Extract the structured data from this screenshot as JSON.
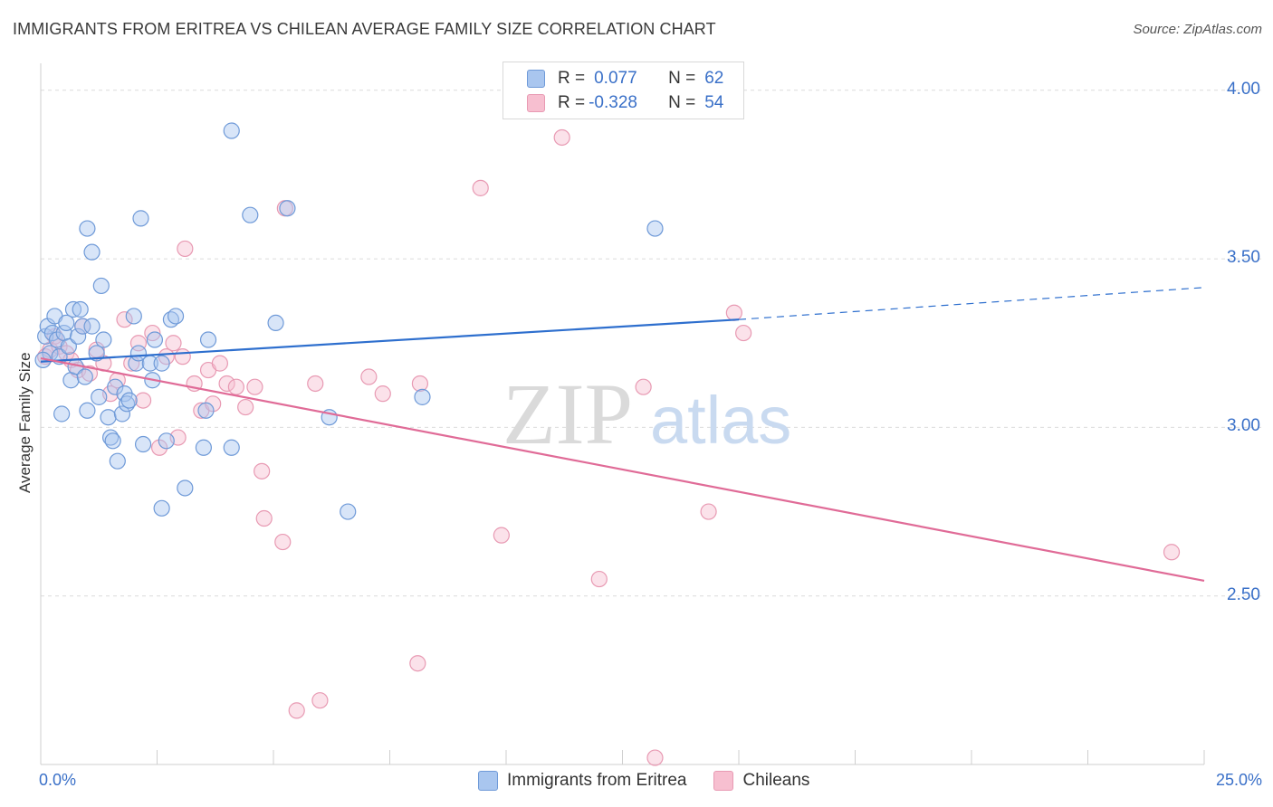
{
  "header": {
    "title": "IMMIGRANTS FROM ERITREA VS CHILEAN AVERAGE FAMILY SIZE CORRELATION CHART",
    "source": "Source: ZipAtlas.com"
  },
  "watermark": {
    "zip": "ZIP",
    "atlas": "atlas"
  },
  "legend": {
    "rows": [
      {
        "r_label": "R =",
        "r_value": "0.077",
        "n_label": "N =",
        "n_value": "62"
      },
      {
        "r_label": "R =",
        "r_value": "-0.328",
        "n_label": "N =",
        "n_value": "54"
      }
    ]
  },
  "axes": {
    "ylabel": "Average Family Size",
    "x_min_label": "0.0%",
    "x_max_label": "25.0%",
    "y_ticks": [
      "4.00",
      "3.50",
      "3.00",
      "2.50"
    ]
  },
  "chart_data": {
    "type": "scatter",
    "title": "IMMIGRANTS FROM ERITREA VS CHILEAN AVERAGE FAMILY SIZE CORRELATION CHART",
    "xlabel": "",
    "ylabel": "Average Family Size",
    "xlim": [
      0,
      25
    ],
    "ylim": [
      2.0,
      4.08
    ],
    "y_tick_values": [
      2.5,
      3.0,
      3.5,
      4.0
    ],
    "grid": "horizontal dashed",
    "legend_placement": "top-center",
    "colors": {
      "eritrea_fill": "#a9c6ef",
      "eritrea_stroke": "#6f9ad8",
      "eritrea_line": "#2e6fce",
      "chilean_fill": "#f7bfd0",
      "chilean_stroke": "#e89ab3",
      "chilean_line": "#e06b97",
      "tick_text": "#3a70c8"
    },
    "series": [
      {
        "name": "Immigrants from Eritrea",
        "trend": {
          "x0": 0,
          "y0": 3.195,
          "x1": 15,
          "y1": 3.32,
          "dashed_to": 25,
          "dashed_y": 3.415
        },
        "points": [
          [
            0.1,
            3.27
          ],
          [
            0.15,
            3.3
          ],
          [
            0.2,
            3.22
          ],
          [
            0.25,
            3.28
          ],
          [
            0.3,
            3.33
          ],
          [
            0.35,
            3.26
          ],
          [
            0.4,
            3.21
          ],
          [
            0.45,
            3.04
          ],
          [
            0.5,
            3.28
          ],
          [
            0.55,
            3.31
          ],
          [
            0.6,
            3.24
          ],
          [
            0.65,
            3.14
          ],
          [
            0.7,
            3.35
          ],
          [
            0.75,
            3.18
          ],
          [
            0.8,
            3.27
          ],
          [
            0.85,
            3.35
          ],
          [
            0.9,
            3.3
          ],
          [
            0.95,
            3.15
          ],
          [
            1.0,
            3.05
          ],
          [
            1.1,
            3.3
          ],
          [
            1.2,
            3.22
          ],
          [
            1.25,
            3.09
          ],
          [
            1.3,
            3.42
          ],
          [
            1.35,
            3.26
          ],
          [
            1.45,
            3.03
          ],
          [
            1.5,
            2.97
          ],
          [
            1.55,
            2.96
          ],
          [
            1.6,
            3.12
          ],
          [
            1.65,
            2.9
          ],
          [
            1.75,
            3.04
          ],
          [
            1.8,
            3.1
          ],
          [
            1.85,
            3.07
          ],
          [
            1.9,
            3.08
          ],
          [
            2.0,
            3.33
          ],
          [
            2.05,
            3.19
          ],
          [
            2.1,
            3.22
          ],
          [
            2.2,
            2.95
          ],
          [
            2.35,
            3.19
          ],
          [
            2.4,
            3.14
          ],
          [
            2.45,
            3.26
          ],
          [
            2.6,
            3.19
          ],
          [
            2.7,
            2.96
          ],
          [
            2.8,
            3.32
          ],
          [
            2.9,
            3.33
          ],
          [
            3.1,
            2.82
          ],
          [
            2.6,
            2.76
          ],
          [
            3.5,
            2.94
          ],
          [
            3.55,
            3.05
          ],
          [
            3.6,
            3.26
          ],
          [
            4.1,
            2.94
          ],
          [
            4.1,
            3.88
          ],
          [
            4.5,
            3.63
          ],
          [
            5.05,
            3.31
          ],
          [
            5.3,
            3.65
          ],
          [
            2.15,
            3.62
          ],
          [
            1.0,
            3.59
          ],
          [
            1.1,
            3.52
          ],
          [
            6.2,
            3.03
          ],
          [
            6.6,
            2.75
          ],
          [
            8.2,
            3.09
          ],
          [
            13.2,
            3.59
          ],
          [
            0.05,
            3.2
          ]
        ]
      },
      {
        "name": "Chileans",
        "trend": {
          "x0": 0,
          "y0": 3.205,
          "x1": 25,
          "y1": 2.545
        },
        "points": [
          [
            0.1,
            3.21
          ],
          [
            0.2,
            3.23
          ],
          [
            0.3,
            3.27
          ],
          [
            0.4,
            3.24
          ],
          [
            0.55,
            3.22
          ],
          [
            0.65,
            3.2
          ],
          [
            0.8,
            3.17
          ],
          [
            0.9,
            3.3
          ],
          [
            1.05,
            3.16
          ],
          [
            1.2,
            3.23
          ],
          [
            1.35,
            3.19
          ],
          [
            1.5,
            3.1
          ],
          [
            1.65,
            3.14
          ],
          [
            1.8,
            3.32
          ],
          [
            1.95,
            3.19
          ],
          [
            2.1,
            3.25
          ],
          [
            2.2,
            3.08
          ],
          [
            2.4,
            3.28
          ],
          [
            2.55,
            2.94
          ],
          [
            2.7,
            3.21
          ],
          [
            2.85,
            3.25
          ],
          [
            2.95,
            2.97
          ],
          [
            3.05,
            3.21
          ],
          [
            3.3,
            3.13
          ],
          [
            3.45,
            3.05
          ],
          [
            3.6,
            3.17
          ],
          [
            3.7,
            3.07
          ],
          [
            3.85,
            3.19
          ],
          [
            4.0,
            3.13
          ],
          [
            4.2,
            3.12
          ],
          [
            4.4,
            3.06
          ],
          [
            4.6,
            3.12
          ],
          [
            4.75,
            2.87
          ],
          [
            4.8,
            2.73
          ],
          [
            5.2,
            2.66
          ],
          [
            5.25,
            3.65
          ],
          [
            5.5,
            2.16
          ],
          [
            5.9,
            3.13
          ],
          [
            6.0,
            2.19
          ],
          [
            7.05,
            3.15
          ],
          [
            7.35,
            3.1
          ],
          [
            8.15,
            3.13
          ],
          [
            8.1,
            2.3
          ],
          [
            9.9,
            2.68
          ],
          [
            9.45,
            3.71
          ],
          [
            11.2,
            3.86
          ],
          [
            12.0,
            2.55
          ],
          [
            12.95,
            3.12
          ],
          [
            3.1,
            3.53
          ],
          [
            15.1,
            3.28
          ],
          [
            14.35,
            2.75
          ],
          [
            14.9,
            3.34
          ],
          [
            13.2,
            2.02
          ],
          [
            24.3,
            2.63
          ]
        ]
      }
    ]
  },
  "bottom_legend": {
    "items": [
      "Immigrants from Eritrea",
      "Chileans"
    ]
  }
}
